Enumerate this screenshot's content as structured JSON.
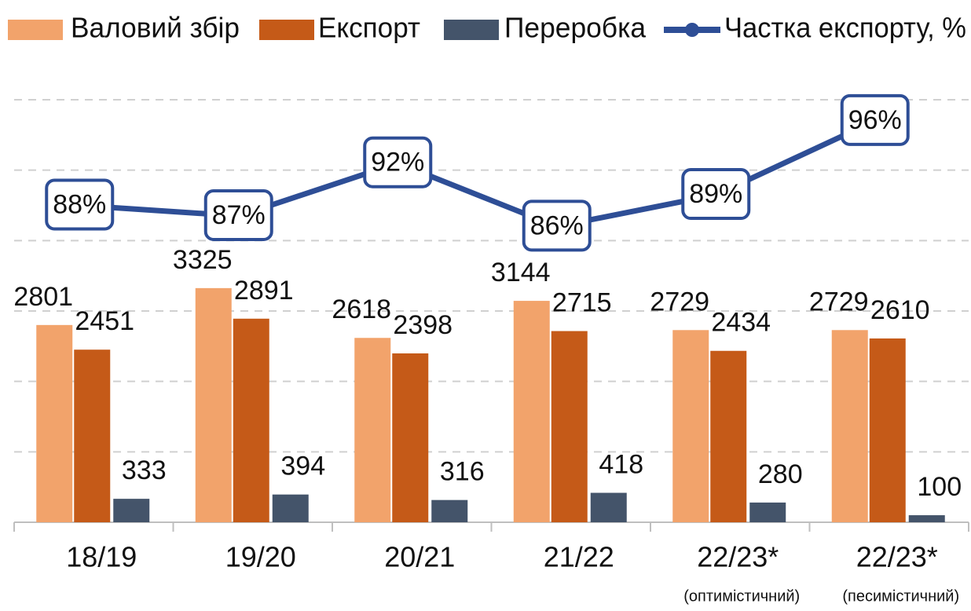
{
  "chart_data": {
    "type": "bar",
    "categories": [
      "18/19",
      "19/20",
      "20/21",
      "21/22",
      "22/23*",
      "22/23*"
    ],
    "category_notes": [
      null,
      null,
      null,
      null,
      "(оптимістичний)",
      "(песимістичний)"
    ],
    "series": [
      {
        "name": "Валовий збір",
        "color": "#f2a36b",
        "values": [
          2801,
          3325,
          2618,
          3144,
          2729,
          2729
        ]
      },
      {
        "name": "Експорт",
        "color": "#c55a18",
        "values": [
          2451,
          2891,
          2398,
          2715,
          2434,
          2610
        ]
      },
      {
        "name": "Переробка",
        "color": "#44546a",
        "values": [
          333,
          394,
          316,
          418,
          280,
          100
        ]
      },
      {
        "name": "Частка експорту, %",
        "color": "#2e4e96",
        "type": "line",
        "axis": "y2",
        "values": [
          88,
          87,
          92,
          86,
          89,
          96
        ],
        "value_labels": [
          "88%",
          "87%",
          "92%",
          "86%",
          "89%",
          "96%"
        ]
      }
    ],
    "ylim": [
      0,
      6000
    ],
    "yticks": [
      0,
      1000,
      2000,
      3000,
      4000,
      5000,
      6000
    ],
    "y2lim": [
      58,
      98
    ],
    "grid": true,
    "legend": "top"
  }
}
